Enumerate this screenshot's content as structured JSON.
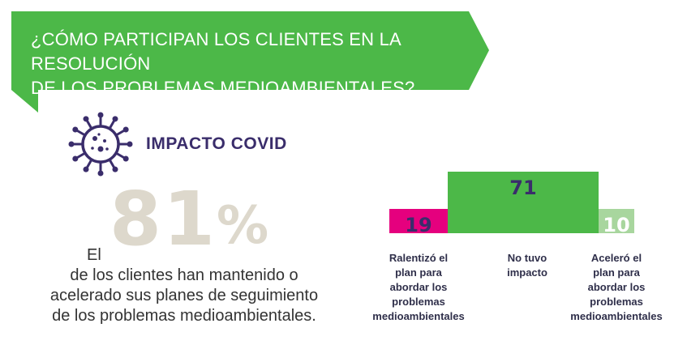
{
  "banner": {
    "line1": "¿CÓMO PARTICIPAN LOS CLIENTES EN LA RESOLUCIÓN",
    "line2": "DE LOS PROBLEMAS MEDIOAMBIENTALES?",
    "color": "#4cb848"
  },
  "covid": {
    "icon": "virus-icon",
    "title": "IMPACTO COVID",
    "icon_color": "#3a2d6b"
  },
  "highlight": {
    "prefix": "El",
    "number": "81",
    "percent_sign": "%",
    "line1": "de los clientes han mantenido o",
    "line2": "acelerado sus planes de seguimiento",
    "line3": "de los problemas medioambientales."
  },
  "chart_data": {
    "type": "bar",
    "categories": [
      "Ralentizó el plan para abordar los problemas medioambientales",
      "No tuvo impacto",
      "Aceleró el plan para abordar los problemas medioambientales"
    ],
    "category_lines": [
      [
        "Ralentizó el",
        "plan para",
        "abordar los",
        "problemas",
        "medioambientales"
      ],
      [
        "No tuvo",
        "impacto"
      ],
      [
        "Aceleró el",
        "plan para",
        "abordar los",
        "problemas",
        "medioambientales"
      ]
    ],
    "values": [
      19,
      71,
      10
    ],
    "colors": [
      "#e5007e",
      "#4cb848",
      "#a8d69e"
    ],
    "label_colors": [
      "#3a2d6b",
      "#3a2d6b",
      "#ffffff"
    ],
    "ylim": [
      0,
      71
    ]
  }
}
